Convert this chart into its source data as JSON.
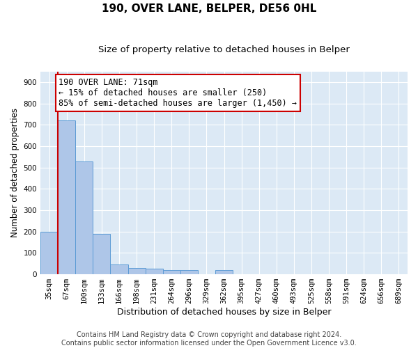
{
  "title1": "190, OVER LANE, BELPER, DE56 0HL",
  "title2": "Size of property relative to detached houses in Belper",
  "xlabel": "Distribution of detached houses by size in Belper",
  "ylabel": "Number of detached properties",
  "categories": [
    "35sqm",
    "67sqm",
    "100sqm",
    "133sqm",
    "166sqm",
    "198sqm",
    "231sqm",
    "264sqm",
    "296sqm",
    "329sqm",
    "362sqm",
    "395sqm",
    "427sqm",
    "460sqm",
    "493sqm",
    "525sqm",
    "558sqm",
    "591sqm",
    "624sqm",
    "656sqm",
    "689sqm"
  ],
  "values": [
    200,
    720,
    530,
    190,
    45,
    30,
    25,
    20,
    20,
    0,
    20,
    0,
    0,
    0,
    0,
    0,
    0,
    0,
    0,
    0,
    0
  ],
  "bar_color": "#aec6e8",
  "bar_edge_color": "#5b9bd5",
  "vline_color": "#cc0000",
  "vline_x": 0.5,
  "annotation_line1": "190 OVER LANE: 71sqm",
  "annotation_line2": "← 15% of detached houses are smaller (250)",
  "annotation_line3": "85% of semi-detached houses are larger (1,450) →",
  "annotation_box_color": "#ffffff",
  "annotation_box_edge": "#cc0000",
  "ylim": [
    0,
    950
  ],
  "yticks": [
    0,
    100,
    200,
    300,
    400,
    500,
    600,
    700,
    800,
    900
  ],
  "background_color": "#dce9f5",
  "title1_fontsize": 11,
  "title2_fontsize": 9.5,
  "annotation_fontsize": 8.5,
  "xlabel_fontsize": 9,
  "ylabel_fontsize": 8.5,
  "tick_fontsize": 7.5,
  "footer_fontsize": 7,
  "footer": "Contains HM Land Registry data © Crown copyright and database right 2024.\nContains public sector information licensed under the Open Government Licence v3.0."
}
